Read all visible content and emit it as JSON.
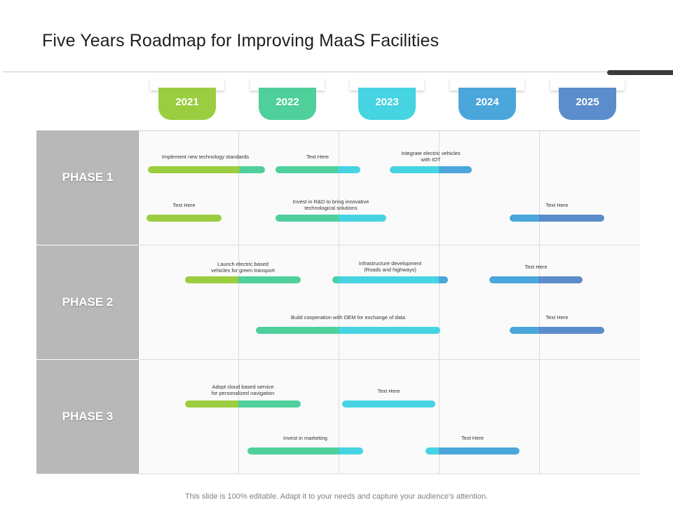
{
  "title": "Five Years Roadmap for Improving MaaS Facilities",
  "colors": {
    "green": "#9acd3f",
    "teal": "#4fcf9b",
    "cyan": "#46d3e2",
    "blue": "#4aa6db",
    "navy": "#5b8ccb",
    "phase_bg": "#b8b8b8"
  },
  "years": [
    {
      "label": "2021",
      "color": "#9acd3f"
    },
    {
      "label": "2022",
      "color": "#4fcf9b"
    },
    {
      "label": "2023",
      "color": "#46d3e2"
    },
    {
      "label": "2024",
      "color": "#4aa6db"
    },
    {
      "label": "2025",
      "color": "#5b8ccb"
    }
  ],
  "phases": [
    {
      "label": "PHASE 1"
    },
    {
      "label": "PHASE 2"
    },
    {
      "label": "PHASE 3"
    }
  ],
  "tasks": [
    {
      "label": "Implement  new  technology  standards"
    },
    {
      "label": "Text Here"
    },
    {
      "label": "Integrate  electric vehicles\nwith IOT"
    },
    {
      "label": "Text Here"
    },
    {
      "label": "Invest  in  R&D to bring innovative\ntechnological  solutions"
    },
    {
      "label": "Text Here"
    },
    {
      "label": "Launch  electric based\nvehicles for green transport"
    },
    {
      "label": "Infrastructure  development\n(Roads and highways)"
    },
    {
      "label": "Text Here"
    },
    {
      "label": "Build cooperation  with OEM for exchange  of data"
    },
    {
      "label": "Text Here"
    },
    {
      "label": "Adopt  cloud  based service\nfor personalized  navigation"
    },
    {
      "label": "Text Here"
    },
    {
      "label": "Invest  in marketing"
    },
    {
      "label": "Text Here"
    }
  ],
  "footer": "This slide is 100% editable. Adapt it to your needs and capture your audience's attention."
}
